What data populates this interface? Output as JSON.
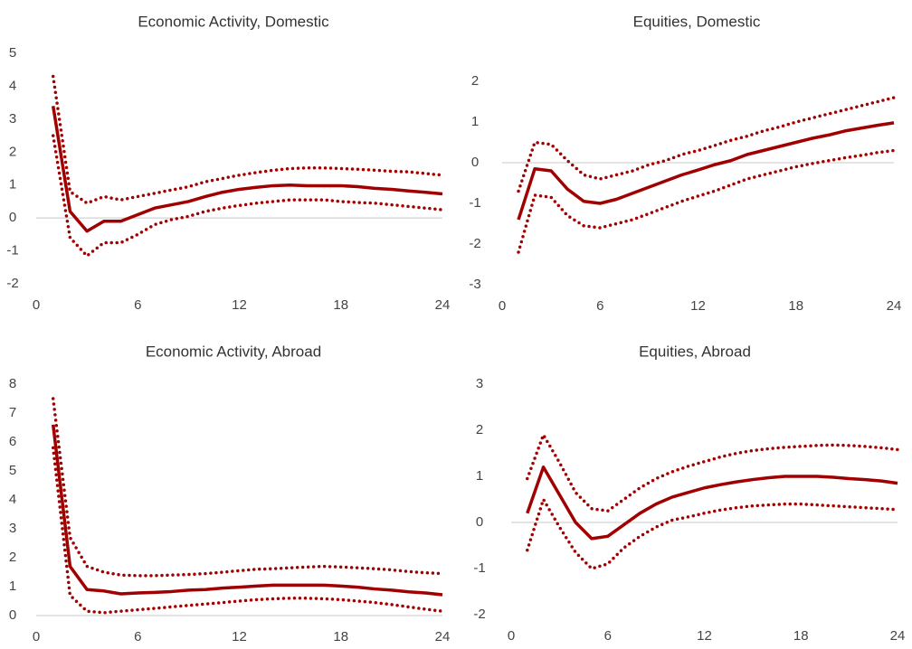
{
  "chart_data": [
    {
      "type": "line",
      "title": "Economic Activity,  Domestic",
      "x": [
        1,
        2,
        3,
        4,
        5,
        6,
        7,
        8,
        9,
        10,
        11,
        12,
        13,
        14,
        15,
        16,
        17,
        18,
        19,
        20,
        21,
        22,
        23,
        24
      ],
      "xlim": [
        0,
        24
      ],
      "xticks": [
        0,
        6,
        12,
        18,
        24
      ],
      "ylim": [
        -2,
        5
      ],
      "yticks": [
        -2,
        -1,
        0,
        1,
        2,
        3,
        4,
        5
      ],
      "series": [
        {
          "color": "#a00000",
          "line_style": "solid",
          "values": [
            3.4,
            0.2,
            -0.4,
            -0.1,
            -0.1,
            0.1,
            0.3,
            0.4,
            0.5,
            0.65,
            0.78,
            0.87,
            0.93,
            0.98,
            1.0,
            0.98,
            0.98,
            0.98,
            0.95,
            0.9,
            0.87,
            0.82,
            0.78,
            0.73
          ]
        },
        {
          "color": "#a00000",
          "line_style": "dotted",
          "values": [
            4.3,
            0.8,
            0.45,
            0.65,
            0.55,
            0.65,
            0.75,
            0.85,
            0.95,
            1.1,
            1.2,
            1.3,
            1.38,
            1.45,
            1.5,
            1.52,
            1.52,
            1.5,
            1.48,
            1.45,
            1.42,
            1.4,
            1.35,
            1.3
          ]
        },
        {
          "color": "#a00000",
          "line_style": "dotted",
          "values": [
            2.5,
            -0.6,
            -1.15,
            -0.75,
            -0.75,
            -0.5,
            -0.2,
            -0.05,
            0.05,
            0.2,
            0.3,
            0.38,
            0.45,
            0.5,
            0.55,
            0.55,
            0.55,
            0.5,
            0.47,
            0.45,
            0.4,
            0.35,
            0.3,
            0.25
          ]
        }
      ]
    },
    {
      "type": "line",
      "title": "Equities, Domestic",
      "x": [
        1,
        2,
        3,
        4,
        5,
        6,
        7,
        8,
        9,
        10,
        11,
        12,
        13,
        14,
        15,
        16,
        17,
        18,
        19,
        20,
        21,
        22,
        23,
        24
      ],
      "xlim": [
        0,
        24
      ],
      "xticks": [
        0,
        6,
        12,
        18,
        24
      ],
      "ylim": [
        -3,
        2
      ],
      "yticks": [
        -3,
        -2,
        -1,
        0,
        1,
        2
      ],
      "series": [
        {
          "color": "#a00000",
          "line_style": "solid",
          "values": [
            -1.4,
            -0.15,
            -0.2,
            -0.65,
            -0.95,
            -1.0,
            -0.9,
            -0.75,
            -0.6,
            -0.45,
            -0.3,
            -0.18,
            -0.05,
            0.05,
            0.2,
            0.3,
            0.4,
            0.5,
            0.6,
            0.68,
            0.78,
            0.85,
            0.92,
            0.98
          ]
        },
        {
          "color": "#a00000",
          "line_style": "dotted",
          "values": [
            -0.7,
            0.5,
            0.45,
            0.05,
            -0.3,
            -0.4,
            -0.3,
            -0.2,
            -0.05,
            0.05,
            0.2,
            0.3,
            0.42,
            0.55,
            0.65,
            0.78,
            0.88,
            1.0,
            1.1,
            1.2,
            1.3,
            1.4,
            1.5,
            1.6
          ]
        },
        {
          "color": "#a00000",
          "line_style": "dotted",
          "values": [
            -2.2,
            -0.8,
            -0.85,
            -1.3,
            -1.55,
            -1.6,
            -1.5,
            -1.4,
            -1.25,
            -1.1,
            -0.95,
            -0.82,
            -0.7,
            -0.55,
            -0.4,
            -0.3,
            -0.2,
            -0.1,
            -0.02,
            0.05,
            0.12,
            0.18,
            0.25,
            0.3
          ]
        }
      ]
    },
    {
      "type": "line",
      "title": "Economic Activity,  Abroad",
      "x": [
        1,
        2,
        3,
        4,
        5,
        6,
        7,
        8,
        9,
        10,
        11,
        12,
        13,
        14,
        15,
        16,
        17,
        18,
        19,
        20,
        21,
        22,
        23,
        24
      ],
      "xlim": [
        0,
        24
      ],
      "xticks": [
        0,
        6,
        12,
        18,
        24
      ],
      "ylim": [
        0,
        8
      ],
      "yticks": [
        0,
        1,
        2,
        3,
        4,
        5,
        6,
        7,
        8
      ],
      "series": [
        {
          "color": "#a00000",
          "line_style": "solid",
          "values": [
            6.6,
            1.7,
            0.9,
            0.85,
            0.75,
            0.78,
            0.8,
            0.83,
            0.88,
            0.9,
            0.95,
            0.98,
            1.02,
            1.05,
            1.05,
            1.05,
            1.05,
            1.02,
            0.98,
            0.92,
            0.88,
            0.82,
            0.78,
            0.72
          ]
        },
        {
          "color": "#a00000",
          "line_style": "dotted",
          "values": [
            7.5,
            2.7,
            1.7,
            1.5,
            1.4,
            1.38,
            1.38,
            1.4,
            1.42,
            1.45,
            1.5,
            1.55,
            1.6,
            1.62,
            1.65,
            1.68,
            1.7,
            1.68,
            1.65,
            1.62,
            1.58,
            1.52,
            1.48,
            1.45
          ]
        },
        {
          "color": "#a00000",
          "line_style": "dotted",
          "values": [
            5.8,
            0.7,
            0.15,
            0.1,
            0.15,
            0.2,
            0.25,
            0.3,
            0.35,
            0.4,
            0.45,
            0.5,
            0.55,
            0.58,
            0.6,
            0.6,
            0.58,
            0.55,
            0.5,
            0.45,
            0.38,
            0.3,
            0.22,
            0.15
          ]
        }
      ]
    },
    {
      "type": "line",
      "title": "Equities, Abroad",
      "x": [
        1,
        2,
        3,
        4,
        5,
        6,
        7,
        8,
        9,
        10,
        11,
        12,
        13,
        14,
        15,
        16,
        17,
        18,
        19,
        20,
        21,
        22,
        23,
        24
      ],
      "xlim": [
        0,
        24
      ],
      "xticks": [
        0,
        6,
        12,
        18,
        24
      ],
      "ylim": [
        -2,
        3
      ],
      "yticks": [
        -2,
        -1,
        0,
        1,
        2,
        3
      ],
      "series": [
        {
          "color": "#a00000",
          "line_style": "solid",
          "values": [
            0.2,
            1.2,
            0.6,
            0.0,
            -0.35,
            -0.3,
            -0.05,
            0.2,
            0.4,
            0.55,
            0.65,
            0.75,
            0.82,
            0.88,
            0.93,
            0.97,
            1.0,
            1.0,
            1.0,
            0.98,
            0.95,
            0.93,
            0.9,
            0.85
          ]
        },
        {
          "color": "#a00000",
          "line_style": "dotted",
          "values": [
            0.95,
            1.9,
            1.3,
            0.65,
            0.3,
            0.25,
            0.5,
            0.75,
            0.95,
            1.1,
            1.22,
            1.32,
            1.42,
            1.5,
            1.56,
            1.6,
            1.63,
            1.65,
            1.67,
            1.68,
            1.67,
            1.65,
            1.62,
            1.58
          ]
        },
        {
          "color": "#a00000",
          "line_style": "dotted",
          "values": [
            -0.6,
            0.5,
            -0.1,
            -0.65,
            -1.0,
            -0.9,
            -0.55,
            -0.3,
            -0.1,
            0.05,
            0.12,
            0.2,
            0.27,
            0.32,
            0.36,
            0.38,
            0.4,
            0.4,
            0.38,
            0.36,
            0.34,
            0.32,
            0.3,
            0.28
          ]
        }
      ]
    }
  ]
}
